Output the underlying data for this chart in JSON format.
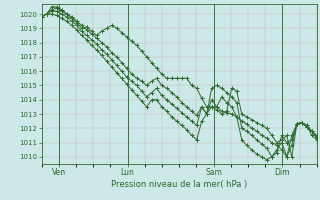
{
  "xlabel": "Pression niveau de la mer( hPa )",
  "bg_color": "#cce8e8",
  "grid_color_major": "#8fbfbf",
  "grid_color_minor": "#aad4d4",
  "line_color": "#2d6a2d",
  "ylim": [
    1009.5,
    1020.7
  ],
  "yticks": [
    1010,
    1011,
    1012,
    1013,
    1014,
    1015,
    1016,
    1017,
    1018,
    1019,
    1020
  ],
  "xtick_labels": [
    "Ven",
    "Lun",
    "Sam",
    "Dim"
  ],
  "xtick_positions": [
    12,
    60,
    120,
    168
  ],
  "total_hours": 192,
  "series": [
    [
      1019.8,
      1020.0,
      1020.5,
      1020.5,
      1020.3,
      1020.0,
      1019.7,
      1019.4,
      1019.0,
      1019.1,
      1018.8,
      1018.5,
      1018.8,
      1019.0,
      1019.2,
      1019.0,
      1018.7,
      1018.4,
      1018.1,
      1017.8,
      1017.4,
      1017.0,
      1016.6,
      1016.2,
      1015.8,
      1015.5,
      1015.5,
      1015.5,
      1015.5,
      1015.5,
      1015.0,
      1014.8,
      1014.1,
      1013.5,
      1013.5,
      1013.3,
      1013.0,
      1013.2,
      1014.8,
      1014.6,
      1013.0,
      1012.8,
      1012.6,
      1012.4,
      1012.2,
      1012.0,
      1011.5,
      1011.0,
      1011.2,
      1011.5,
      1010.0,
      1012.3,
      1012.4,
      1012.2,
      1011.5,
      1011.2
    ],
    [
      1019.8,
      1020.0,
      1020.3,
      1020.4,
      1020.2,
      1020.0,
      1019.8,
      1019.5,
      1019.2,
      1018.9,
      1018.6,
      1018.3,
      1018.0,
      1017.7,
      1017.3,
      1017.0,
      1016.6,
      1016.2,
      1015.8,
      1015.5,
      1015.3,
      1015.0,
      1015.3,
      1015.5,
      1015.0,
      1014.8,
      1014.5,
      1014.2,
      1013.8,
      1013.5,
      1013.2,
      1012.9,
      1013.5,
      1013.0,
      1013.5,
      1013.5,
      1013.2,
      1013.1,
      1013.0,
      1012.8,
      1012.5,
      1012.3,
      1012.0,
      1011.8,
      1011.5,
      1011.3,
      1011.0,
      1010.8,
      1010.5,
      1010.0,
      1010.8,
      1012.3,
      1012.4,
      1012.1,
      1011.8,
      1011.4
    ],
    [
      1019.8,
      1020.0,
      1020.2,
      1020.2,
      1020.0,
      1019.8,
      1019.5,
      1019.2,
      1018.8,
      1018.5,
      1018.2,
      1017.9,
      1017.5,
      1017.2,
      1016.8,
      1016.4,
      1016.0,
      1015.6,
      1015.3,
      1015.0,
      1014.6,
      1014.2,
      1014.5,
      1014.8,
      1014.3,
      1014.0,
      1013.7,
      1013.4,
      1013.1,
      1012.8,
      1012.5,
      1012.2,
      1013.5,
      1013.0,
      1014.8,
      1015.0,
      1014.8,
      1014.5,
      1014.2,
      1013.8,
      1012.0,
      1011.8,
      1011.5,
      1011.2,
      1010.9,
      1010.6,
      1010.0,
      1010.3,
      1011.5,
      1011.0,
      1011.2,
      1012.3,
      1012.4,
      1012.2,
      1011.8,
      1011.3
    ],
    [
      1019.8,
      1020.0,
      1020.0,
      1019.9,
      1019.7,
      1019.5,
      1019.2,
      1018.9,
      1018.5,
      1018.2,
      1017.8,
      1017.5,
      1017.1,
      1016.7,
      1016.3,
      1015.9,
      1015.5,
      1015.1,
      1014.7,
      1014.3,
      1013.9,
      1013.5,
      1014.0,
      1014.0,
      1013.5,
      1013.2,
      1012.8,
      1012.5,
      1012.2,
      1011.9,
      1011.5,
      1011.2,
      1012.5,
      1013.0,
      1014.0,
      1013.5,
      1014.2,
      1013.8,
      1013.5,
      1012.8,
      1011.2,
      1010.8,
      1010.5,
      1010.2,
      1010.0,
      1009.8,
      1010.0,
      1010.5,
      1011.0,
      1010.0,
      1011.5,
      1012.3,
      1012.4,
      1012.1,
      1011.8,
      1011.5
    ]
  ]
}
